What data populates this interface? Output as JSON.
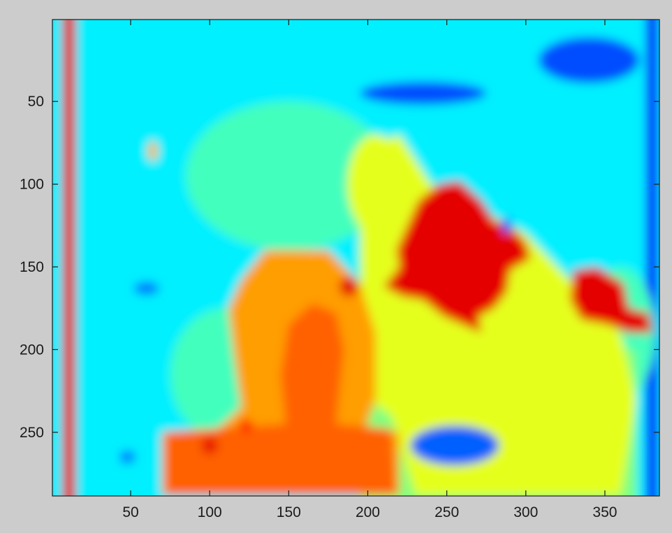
{
  "chart_data": {
    "type": "heatmap",
    "title": "",
    "xlabel": "",
    "ylabel": "",
    "xlim": [
      1,
      384
    ],
    "ylim": [
      1,
      288
    ],
    "y_reversed": true,
    "colormap": "jet",
    "clim": [
      0,
      1
    ],
    "background_value": 0.36,
    "xticks": [
      50,
      100,
      150,
      200,
      250,
      300,
      350
    ],
    "yticks": [
      50,
      100,
      150,
      200,
      250
    ],
    "xtick_labels": [
      "50",
      "100",
      "150",
      "200",
      "250",
      "300",
      "350"
    ],
    "ytick_labels": [
      "50",
      "100",
      "150",
      "200",
      "250"
    ],
    "grid": false,
    "legend": "none",
    "axes_background": "#cccccc",
    "regions": [
      {
        "name": "left stripe",
        "shape": "rect",
        "x": [
          7,
          15
        ],
        "y": [
          1,
          288
        ],
        "value": 0.9
      },
      {
        "name": "right edge",
        "shape": "rect",
        "x": [
          376,
          384
        ],
        "y": [
          1,
          288
        ],
        "value": 0.12
      },
      {
        "name": "cyan-green cloud A",
        "shape": "ellipse",
        "cx": 150,
        "cy": 95,
        "rx": 65,
        "ry": 45,
        "value": 0.44
      },
      {
        "name": "cyan-green cloud B",
        "shape": "ellipse",
        "cx": 110,
        "cy": 215,
        "rx": 35,
        "ry": 40,
        "value": 0.44
      },
      {
        "name": "cyan-green cloud C",
        "shape": "ellipse",
        "cx": 360,
        "cy": 190,
        "rx": 22,
        "ry": 40,
        "value": 0.44
      },
      {
        "name": "green band",
        "shape": "rect",
        "x": [
          195,
          370
        ],
        "y": [
          200,
          288
        ],
        "value": 0.5
      },
      {
        "name": "light green body",
        "shape": "poly",
        "points": [
          [
            195,
            80
          ],
          [
            220,
            70
          ],
          [
            240,
            100
          ],
          [
            300,
            130
          ],
          [
            330,
            160
          ],
          [
            360,
            190
          ],
          [
            370,
            230
          ],
          [
            360,
            288
          ],
          [
            230,
            288
          ],
          [
            215,
            240
          ],
          [
            200,
            230
          ],
          [
            195,
            175
          ]
        ],
        "value": 0.6
      },
      {
        "name": "light green top",
        "shape": "ellipse",
        "cx": 205,
        "cy": 100,
        "rx": 18,
        "ry": 30,
        "value": 0.6
      },
      {
        "name": "yellow torso",
        "shape": "poly",
        "points": [
          [
            120,
            158
          ],
          [
            135,
            140
          ],
          [
            175,
            140
          ],
          [
            195,
            160
          ],
          [
            205,
            190
          ],
          [
            205,
            230
          ],
          [
            198,
            250
          ],
          [
            220,
            250
          ],
          [
            220,
            288
          ],
          [
            70,
            288
          ],
          [
            70,
            250
          ],
          [
            105,
            248
          ],
          [
            120,
            235
          ],
          [
            115,
            200
          ],
          [
            112,
            175
          ]
        ],
        "value": 0.72
      },
      {
        "name": "orange body",
        "shape": "poly",
        "points": [
          [
            148,
            245
          ],
          [
            145,
            215
          ],
          [
            150,
            185
          ],
          [
            165,
            172
          ],
          [
            180,
            178
          ],
          [
            185,
            200
          ],
          [
            180,
            245
          ],
          [
            215,
            248
          ],
          [
            218,
            288
          ],
          [
            72,
            288
          ],
          [
            72,
            250
          ]
        ],
        "value": 0.78
      },
      {
        "name": "red blob main",
        "shape": "poly",
        "points": [
          [
            210,
            162
          ],
          [
            220,
            150
          ],
          [
            218,
            140
          ],
          [
            225,
            125
          ],
          [
            232,
            110
          ],
          [
            245,
            100
          ],
          [
            258,
            98
          ],
          [
            272,
            110
          ],
          [
            280,
            122
          ],
          [
            290,
            125
          ],
          [
            300,
            135
          ],
          [
            303,
            145
          ],
          [
            290,
            152
          ],
          [
            288,
            165
          ],
          [
            280,
            175
          ],
          [
            270,
            180
          ],
          [
            272,
            190
          ],
          [
            260,
            185
          ],
          [
            248,
            180
          ],
          [
            235,
            170
          ],
          [
            222,
            168
          ]
        ],
        "value": 0.9
      },
      {
        "name": "red blob right",
        "shape": "poly",
        "points": [
          [
            330,
            152
          ],
          [
            345,
            150
          ],
          [
            362,
            160
          ],
          [
            365,
            175
          ],
          [
            378,
            178
          ],
          [
            380,
            190
          ],
          [
            365,
            190
          ],
          [
            352,
            185
          ],
          [
            335,
            182
          ],
          [
            328,
            170
          ]
        ],
        "value": 0.9
      },
      {
        "name": "red dot neck",
        "shape": "ellipse",
        "cx": 188,
        "cy": 162,
        "rx": 6,
        "ry": 6,
        "value": 0.9
      },
      {
        "name": "red dot 1",
        "shape": "ellipse",
        "cx": 100,
        "cy": 258,
        "rx": 5,
        "ry": 5,
        "value": 0.9
      },
      {
        "name": "red dot 2",
        "shape": "ellipse",
        "cx": 123,
        "cy": 246,
        "rx": 4,
        "ry": 4,
        "value": 0.86
      },
      {
        "name": "yellow spot",
        "shape": "ellipse",
        "cx": 64,
        "cy": 80,
        "rx": 3,
        "ry": 6,
        "value": 0.7
      },
      {
        "name": "blue cluster top",
        "shape": "ellipse",
        "cx": 235,
        "cy": 45,
        "rx": 40,
        "ry": 7,
        "value": 0.2
      },
      {
        "name": "blue cluster top-right",
        "shape": "ellipse",
        "cx": 340,
        "cy": 25,
        "rx": 32,
        "ry": 14,
        "value": 0.2
      },
      {
        "name": "blue cluster bottom",
        "shape": "ellipse",
        "cx": 255,
        "cy": 258,
        "rx": 28,
        "ry": 12,
        "value": 0.22
      },
      {
        "name": "blue dot left",
        "shape": "ellipse",
        "cx": 60,
        "cy": 163,
        "rx": 8,
        "ry": 4,
        "value": 0.24
      },
      {
        "name": "blue dot low-left",
        "shape": "ellipse",
        "cx": 48,
        "cy": 265,
        "rx": 5,
        "ry": 4,
        "value": 0.24
      },
      {
        "name": "blue dot mid",
        "shape": "ellipse",
        "cx": 288,
        "cy": 125,
        "rx": 3,
        "ry": 5,
        "value": 0.22
      }
    ]
  }
}
